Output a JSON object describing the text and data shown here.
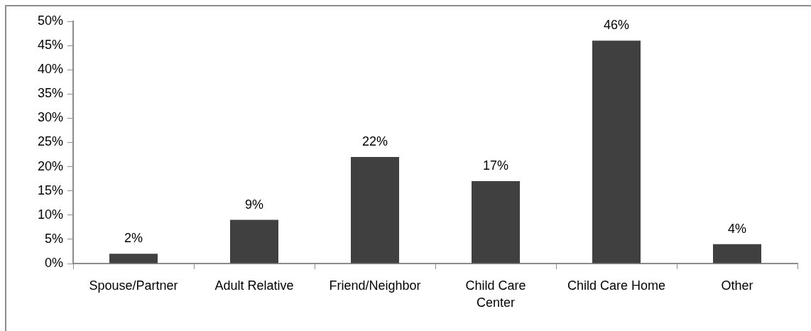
{
  "chart_data": {
    "type": "bar",
    "categories": [
      "Spouse/Partner",
      "Adult Relative",
      "Friend/Neighbor",
      "Child Care Center",
      "Child Care Home",
      "Other"
    ],
    "values": [
      2,
      9,
      22,
      17,
      46,
      4
    ],
    "color": "#404040",
    "ylim": [
      0,
      50
    ],
    "yticks": [
      {
        "value": 0,
        "label": "0%"
      },
      {
        "value": 5,
        "label": "5%"
      },
      {
        "value": 10,
        "label": "10%"
      },
      {
        "value": 15,
        "label": "15%"
      },
      {
        "value": 20,
        "label": "20%"
      },
      {
        "value": 25,
        "label": "25%"
      },
      {
        "value": 30,
        "label": "30%"
      },
      {
        "value": 35,
        "label": "35%"
      },
      {
        "value": 40,
        "label": "40%"
      },
      {
        "value": 45,
        "label": "45%"
      },
      {
        "value": 50,
        "label": "50%"
      }
    ],
    "value_labels": [
      "2%",
      "9%",
      "22%",
      "17%",
      "46%",
      "4%"
    ]
  }
}
